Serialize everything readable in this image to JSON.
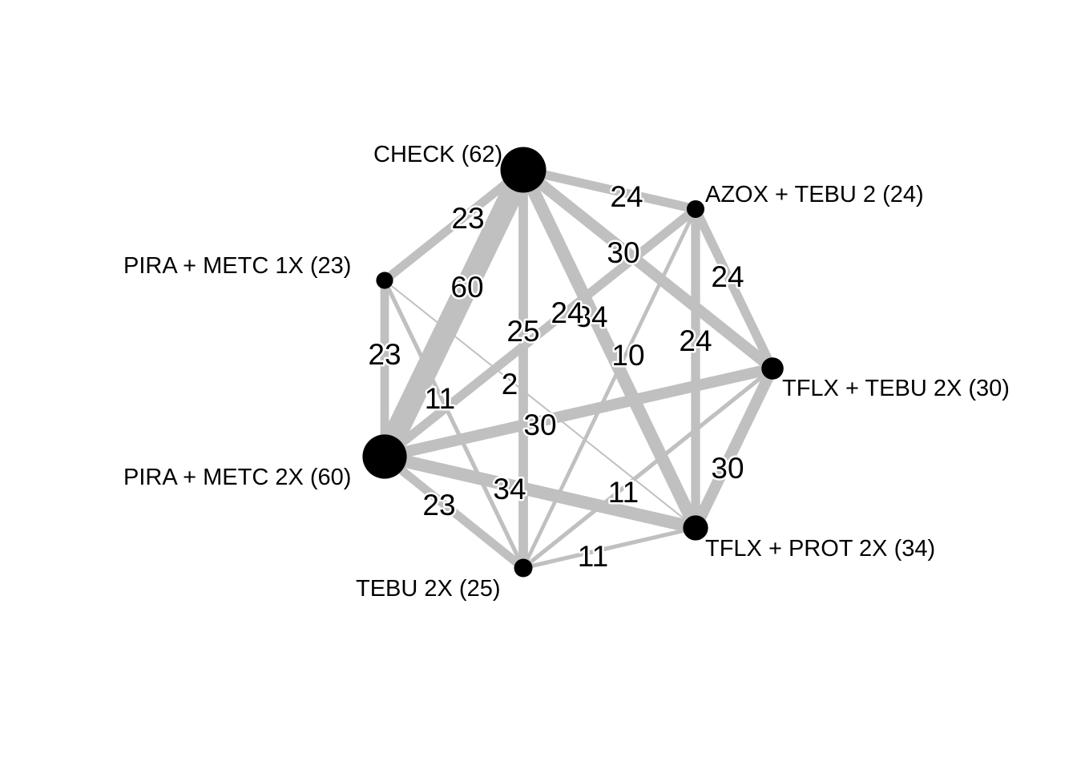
{
  "diagram": {
    "type": "network",
    "nodes": [
      {
        "id": "check",
        "label": "CHECK (62)",
        "size": 62
      },
      {
        "id": "azox_tebu2",
        "label": "AZOX + TEBU 2 (24)",
        "size": 24
      },
      {
        "id": "tflx_tebu2x",
        "label": "TFLX + TEBU 2X (30)",
        "size": 30
      },
      {
        "id": "tflx_prot2x",
        "label": "TFLX + PROT 2X (34)",
        "size": 34
      },
      {
        "id": "tebu2x",
        "label": "TEBU 2X (25)",
        "size": 25
      },
      {
        "id": "pira_metc2x",
        "label": "PIRA + METC 2X (60)",
        "size": 60
      },
      {
        "id": "pira_metc1x",
        "label": "PIRA + METC 1X (23)",
        "size": 23
      }
    ],
    "edges": [
      {
        "from": "check",
        "to": "azox_tebu2",
        "weight": 24,
        "label": "24"
      },
      {
        "from": "check",
        "to": "tflx_tebu2x",
        "weight": 30,
        "label": "30"
      },
      {
        "from": "check",
        "to": "tflx_prot2x",
        "weight": 34,
        "label": "34"
      },
      {
        "from": "check",
        "to": "tebu2x",
        "weight": 25,
        "label": "25"
      },
      {
        "from": "check",
        "to": "pira_metc2x",
        "weight": 60,
        "label": "60"
      },
      {
        "from": "check",
        "to": "pira_metc1x",
        "weight": 23,
        "label": "23"
      },
      {
        "from": "azox_tebu2",
        "to": "tflx_tebu2x",
        "weight": 24,
        "label": "24"
      },
      {
        "from": "azox_tebu2",
        "to": "tflx_prot2x",
        "weight": 24,
        "label": "24"
      },
      {
        "from": "azox_tebu2",
        "to": "pira_metc2x",
        "weight": 24,
        "label": "24"
      },
      {
        "from": "azox_tebu2",
        "to": "tebu2x",
        "weight": 10,
        "label": "10"
      },
      {
        "from": "tflx_tebu2x",
        "to": "tflx_prot2x",
        "weight": 30,
        "label": "30"
      },
      {
        "from": "tflx_tebu2x",
        "to": "pira_metc2x",
        "weight": 30,
        "label": "30"
      },
      {
        "from": "tflx_tebu2x",
        "to": "tebu2x",
        "weight": 11,
        "label": "11"
      },
      {
        "from": "tflx_prot2x",
        "to": "pira_metc2x",
        "weight": 34,
        "label": "34"
      },
      {
        "from": "tflx_prot2x",
        "to": "tebu2x",
        "weight": 11,
        "label": "11"
      },
      {
        "from": "tebu2x",
        "to": "pira_metc2x",
        "weight": 23,
        "label": "23"
      },
      {
        "from": "pira_metc1x",
        "to": "pira_metc2x",
        "weight": 23,
        "label": "23"
      },
      {
        "from": "pira_metc1x",
        "to": "tebu2x",
        "weight": 11,
        "label": "11"
      },
      {
        "from": "pira_metc1x",
        "to": "tflx_prot2x",
        "weight": 2,
        "label": "2"
      }
    ]
  },
  "colors": {
    "edge": "#c0c0c0",
    "node": "#000000",
    "background": "#ffffff",
    "text": "#000000"
  }
}
